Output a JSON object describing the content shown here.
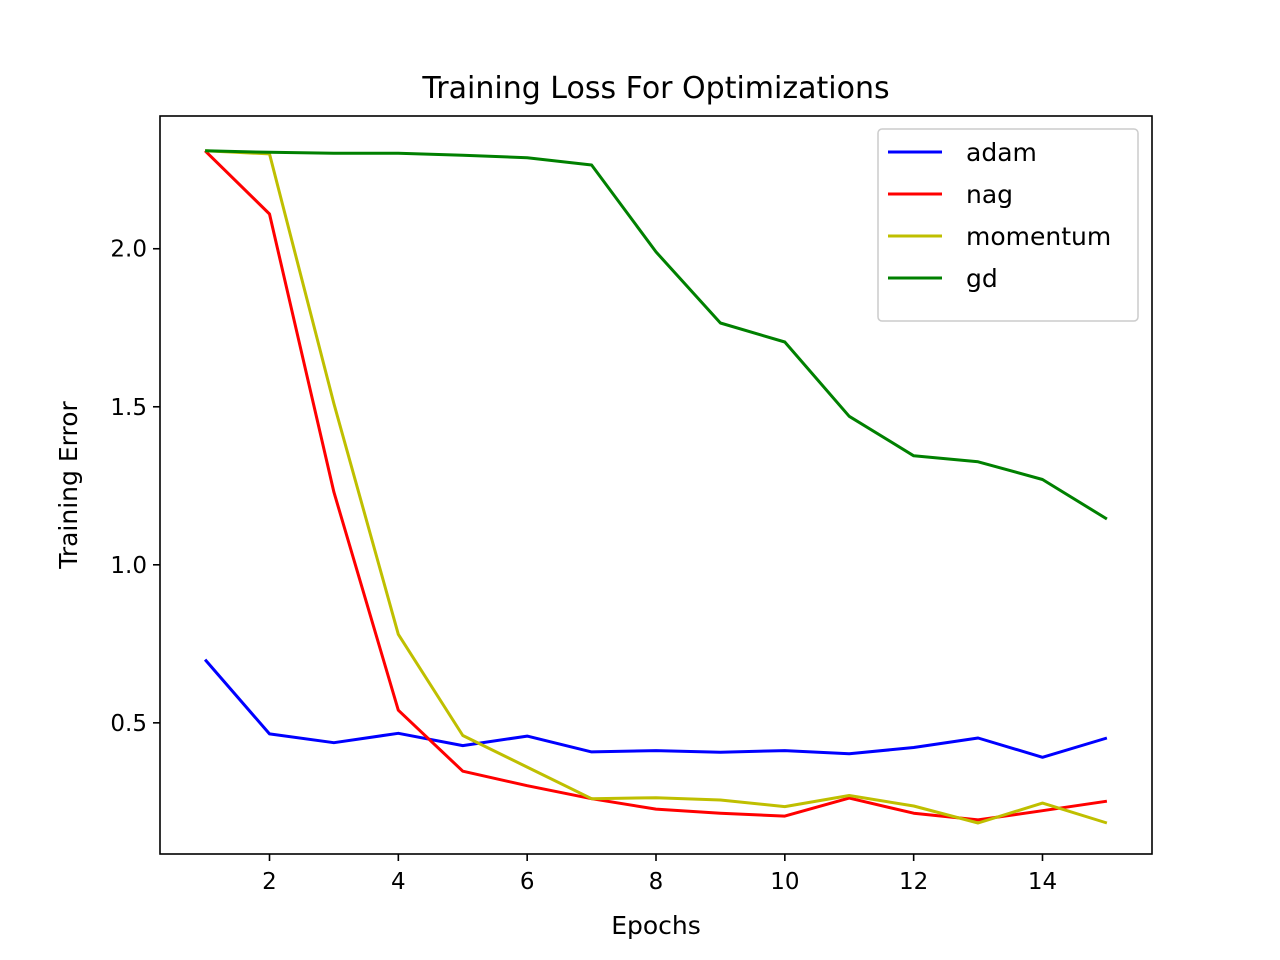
{
  "chart_data": {
    "type": "line",
    "title": "Training Loss For Optimizations",
    "xlabel": "Epochs",
    "ylabel": "Training Error",
    "xlim": [
      0.3,
      15.7
    ],
    "ylim": [
      0.085,
      2.42
    ],
    "xticks": [
      2,
      4,
      6,
      8,
      10,
      12,
      14
    ],
    "yticks": [
      0.5,
      1.0,
      1.5,
      2.0
    ],
    "xtick_labels": [
      "2",
      "4",
      "6",
      "8",
      "10",
      "12",
      "14"
    ],
    "ytick_labels": [
      "0.5",
      "1.0",
      "1.5",
      "2.0"
    ],
    "grid": false,
    "legend_position": "top-right",
    "x": [
      1,
      2,
      3,
      4,
      5,
      6,
      7,
      8,
      9,
      10,
      11,
      12,
      13,
      14,
      15
    ],
    "series": [
      {
        "name": "adam",
        "color": "#0000ff",
        "values": [
          0.7,
          0.465,
          0.437,
          0.467,
          0.428,
          0.458,
          0.408,
          0.412,
          0.407,
          0.412,
          0.402,
          0.422,
          0.452,
          0.391,
          0.452
        ]
      },
      {
        "name": "nag",
        "color": "#ff0000",
        "values": [
          2.31,
          2.11,
          1.23,
          0.54,
          0.347,
          0.301,
          0.26,
          0.227,
          0.214,
          0.205,
          0.262,
          0.214,
          0.193,
          0.222,
          0.252
        ]
      },
      {
        "name": "momentum",
        "color": "#bfbf00",
        "values": [
          2.31,
          2.3,
          1.51,
          0.78,
          0.46,
          0.36,
          0.26,
          0.263,
          0.256,
          0.235,
          0.27,
          0.237,
          0.183,
          0.246,
          0.183
        ]
      },
      {
        "name": "gd",
        "color": "#008000",
        "values": [
          2.31,
          2.305,
          2.302,
          2.302,
          2.296,
          2.288,
          2.265,
          1.99,
          1.765,
          1.705,
          1.47,
          1.345,
          1.326,
          1.27,
          1.145
        ]
      }
    ]
  }
}
